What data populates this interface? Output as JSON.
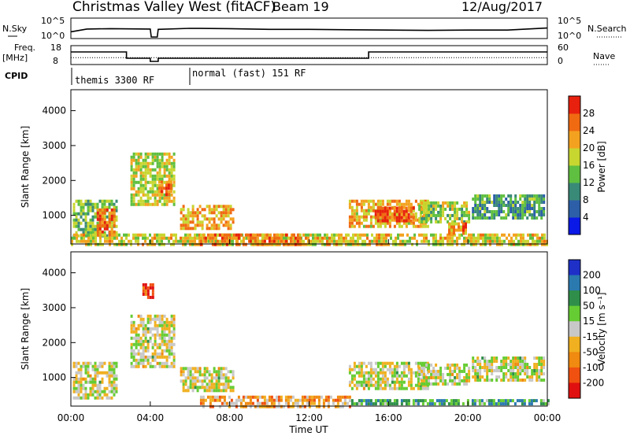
{
  "header": {
    "title": "Christmas Valley West (fitACF)",
    "beam": "Beam 19",
    "date": "12/Aug/2017"
  },
  "strip_labels": {
    "nsky": "N.Sky",
    "nsky_tick_hi": "10^5",
    "nsky_tick_lo": "10^0",
    "nsearch": "N.Search",
    "nsearch_tick_hi": "10^5",
    "nsearch_tick_lo": "10^0",
    "freq": "Freq.",
    "freq_unit": "[MHz]",
    "freq_tick_hi": "18",
    "freq_tick_lo": "8",
    "nave": "Nave",
    "nave_tick_hi": "60",
    "nave_tick_lo": "0",
    "cpid": "CPID",
    "cpid_segments": [
      {
        "label": "themis 3300 RF",
        "start_hour": 0
      },
      {
        "label": "normal (fast) 151 RF",
        "start_hour": 6
      }
    ]
  },
  "axes": {
    "ylabel": "Slant Range [km]",
    "xlabel": "Time UT",
    "xticks": [
      "00:00",
      "04:00",
      "08:00",
      "12:00",
      "16:00",
      "20:00",
      "00:00"
    ],
    "yticks": [
      "1000",
      "2000",
      "3000",
      "4000"
    ]
  },
  "colorbars": {
    "power": {
      "label": "Power [dB]",
      "ticks": [
        "4",
        "8",
        "12",
        "16",
        "20",
        "24",
        "28"
      ],
      "colors": [
        "#0b19e6",
        "#2c5fa8",
        "#3a8a78",
        "#5fbf40",
        "#c8d630",
        "#f3a21f",
        "#f06a12",
        "#e8200e"
      ]
    },
    "velocity": {
      "label": "Velocity [m s⁻¹]",
      "ticks": [
        "200",
        "100",
        "50",
        "15",
        "-15",
        "-50",
        "-100",
        "-200"
      ],
      "colors": [
        "#1e30c8",
        "#2a7ab0",
        "#2f8f4a",
        "#66cc33",
        "#c8c8c8",
        "#f0b020",
        "#f08a10",
        "#f05010",
        "#e01010"
      ]
    }
  },
  "chart_data": [
    {
      "type": "line",
      "name_panel": "N.Sky / N.Search",
      "x_units": "hours UT",
      "xlim": [
        0,
        24
      ],
      "series": [
        {
          "name": "N.Sky",
          "x": [
            0,
            0.8,
            2,
            4,
            4.05,
            4.35,
            4.4,
            6,
            8,
            10,
            12,
            14,
            16,
            18,
            20,
            22,
            24
          ],
          "y": [
            1.5,
            2.3,
            2.4,
            2.3,
            0,
            0,
            2.2,
            2.5,
            2.4,
            2.2,
            2.2,
            2.1,
            2.0,
            1.9,
            2.0,
            2.0,
            2.6
          ]
        }
      ]
    },
    {
      "type": "line",
      "name_panel": "Freq / Nave",
      "x_units": "hours UT",
      "xlim": [
        0,
        24
      ],
      "series": [
        {
          "name": "Freq.",
          "x": [
            0,
            2.8,
            2.8,
            4.0,
            4.0,
            4.4,
            4.4,
            15.0,
            15.0,
            24
          ],
          "y": [
            15,
            15,
            11,
            11,
            9,
            9,
            11,
            11,
            15,
            15
          ]
        },
        {
          "name": "Nave",
          "x": [
            0,
            24
          ],
          "y": [
            20,
            20
          ]
        }
      ]
    },
    {
      "type": "heatmap",
      "name_panel": "Power",
      "x_units": "hours UT",
      "y_units": "km",
      "xlim": [
        0,
        24
      ],
      "ylim": [
        180,
        4600
      ],
      "zlim": [
        0,
        30
      ],
      "regions": [
        {
          "t0": 0.1,
          "t1": 2.3,
          "r0": 450,
          "r1": 1450,
          "level": 0.45
        },
        {
          "t0": 1.3,
          "t1": 2.2,
          "r0": 450,
          "r1": 1200,
          "level": 0.8
        },
        {
          "t0": 3.0,
          "t1": 5.2,
          "r0": 1300,
          "r1": 2800,
          "level": 0.55
        },
        {
          "t0": 4.4,
          "t1": 5.0,
          "r0": 1550,
          "r1": 2000,
          "level": 0.8
        },
        {
          "t0": 5.5,
          "t1": 8.2,
          "r0": 650,
          "r1": 1300,
          "level": 0.7
        },
        {
          "t0": 0,
          "t1": 24,
          "r0": 200,
          "r1": 480,
          "level": 0.6
        },
        {
          "t0": 6.5,
          "t1": 11.5,
          "r0": 200,
          "r1": 480,
          "level": 0.75
        },
        {
          "t0": 14.0,
          "t1": 18.0,
          "r0": 700,
          "r1": 1450,
          "level": 0.65
        },
        {
          "t0": 15.3,
          "t1": 17.3,
          "r0": 800,
          "r1": 1250,
          "level": 0.9
        },
        {
          "t0": 17.5,
          "t1": 20.0,
          "r0": 800,
          "r1": 1400,
          "level": 0.5
        },
        {
          "t0": 19.0,
          "t1": 19.9,
          "r0": 520,
          "r1": 800,
          "level": 0.75
        },
        {
          "t0": 20.2,
          "t1": 23.8,
          "r0": 900,
          "r1": 1600,
          "level": 0.35
        }
      ]
    },
    {
      "type": "heatmap",
      "name_panel": "Velocity",
      "x_units": "hours UT",
      "y_units": "km",
      "xlim": [
        0,
        24
      ],
      "ylim": [
        180,
        4600
      ],
      "zlim": [
        -200,
        200
      ],
      "regions": [
        {
          "t0": 0.1,
          "t1": 2.3,
          "r0": 450,
          "r1": 1450,
          "level": 0.5
        },
        {
          "t0": 3.0,
          "t1": 5.2,
          "r0": 1300,
          "r1": 2800,
          "level": 0.5
        },
        {
          "t0": 5.5,
          "t1": 8.2,
          "r0": 650,
          "r1": 1300,
          "level": 0.5
        },
        {
          "t0": 6.5,
          "t1": 14.0,
          "r0": 200,
          "r1": 480,
          "level": 0.35
        },
        {
          "t0": 14.0,
          "t1": 24,
          "r0": 200,
          "r1": 380,
          "level": 0.7
        },
        {
          "t0": 14.0,
          "t1": 18.0,
          "r0": 700,
          "r1": 1450,
          "level": 0.5
        },
        {
          "t0": 17.5,
          "t1": 20.0,
          "r0": 800,
          "r1": 1400,
          "level": 0.5
        },
        {
          "t0": 20.2,
          "t1": 23.8,
          "r0": 900,
          "r1": 1600,
          "level": 0.5
        },
        {
          "t0": 3.6,
          "t1": 4.1,
          "r0": 3300,
          "r1": 3700,
          "level": 0.1
        }
      ]
    }
  ]
}
